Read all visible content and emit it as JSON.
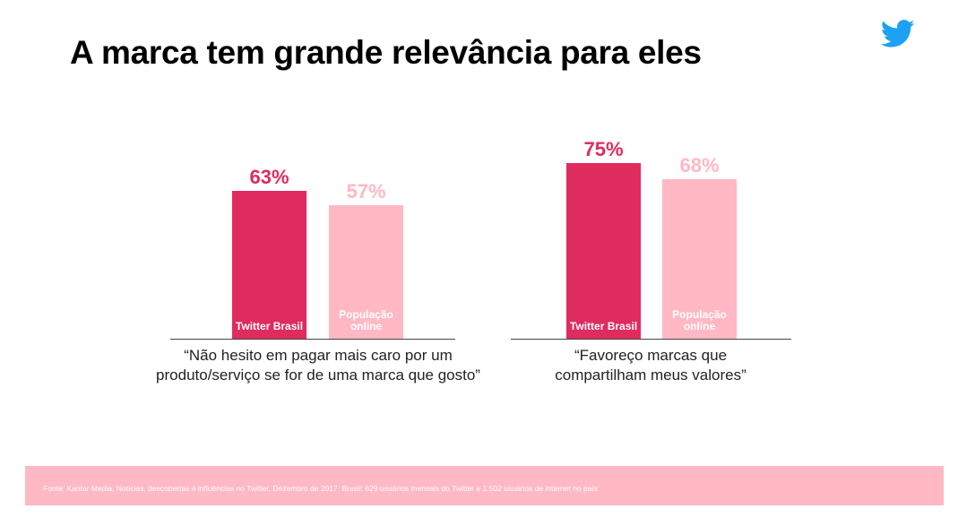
{
  "slide": {
    "title": "A marca tem grande relevância para eles",
    "footer": "Fonte: Kantar Media, Notícias, descobertas e influências no Twitter, Dezembro de 2017. Brasil: 629 usuários mensais do Twitter e 1.502 usuários de internet no país"
  },
  "colors": {
    "twitter": "#e02b5f",
    "population": "#ffb8c4",
    "logo": "#1da1f2"
  },
  "chart_data": [
    {
      "type": "bar",
      "caption": [
        "“Não hesito em pagar mais caro por um",
        "produto/serviço se for de uma marca que gosto”"
      ],
      "categories": [
        "Twitter Brasil",
        "População online"
      ],
      "category_lines": [
        [
          "Twitter Brasil"
        ],
        [
          "População",
          "online"
        ]
      ],
      "values": [
        63,
        57
      ],
      "labels": [
        "63%",
        "57%"
      ],
      "ylim": [
        0,
        100
      ]
    },
    {
      "type": "bar",
      "caption": [
        "“Favoreço marcas que",
        "compartilham meus valores”"
      ],
      "categories": [
        "Twitter Brasil",
        "População online"
      ],
      "category_lines": [
        [
          "Twitter Brasil"
        ],
        [
          "População",
          "online"
        ]
      ],
      "values": [
        75,
        68
      ],
      "labels": [
        "75%",
        "68%"
      ],
      "ylim": [
        0,
        100
      ]
    }
  ]
}
